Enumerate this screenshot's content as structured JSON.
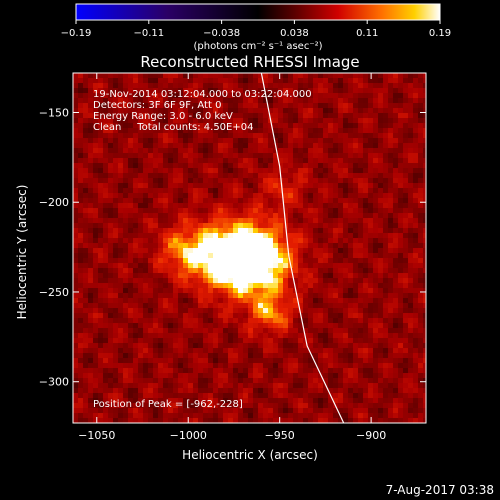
{
  "chart_data": {
    "type": "heatmap",
    "title": "Reconstructed RHESSI Image",
    "xlabel": "Heliocentric X (arcsec)",
    "ylabel": "Heliocentric Y (arcsec)",
    "xlim": [
      -1063,
      -870
    ],
    "ylim": [
      -323,
      -128
    ],
    "xticks": [
      -1050,
      -1000,
      -950,
      -900
    ],
    "xtick_labels": [
      "−1050",
      "−1000",
      "−950",
      "−900"
    ],
    "yticks": [
      -150,
      -200,
      -250,
      -300
    ],
    "ytick_labels": [
      "−150",
      "−200",
      "−250",
      "−300"
    ],
    "colorbar": {
      "min": -0.19,
      "max": 0.19,
      "tick_labels": [
        "−0.19",
        "−0.11",
        "−0.038",
        "0.038",
        "0.11",
        "0.19"
      ],
      "units": "(photons cm⁻² s⁻¹ asec⁻²)",
      "colormap": [
        "#0000ff",
        "#2a0066",
        "#000000",
        "#3a0000",
        "#c00000",
        "#ff6000",
        "#ffd000",
        "#ffffff"
      ]
    },
    "annotations": {
      "time_range": "19-Nov-2014 03:12:04.000 to 03:22:04.000",
      "detectors": "Detectors: 3F 6F 9F, Att 0",
      "energy": "Energy Range: 3.0 - 6.0 keV",
      "method": "Clean     Total counts: 4.50E+04",
      "peak": "Position of Peak = [-962,-228]"
    },
    "peak": [
      -962,
      -228
    ],
    "limb_curve": [
      [
        -960,
        -128
      ],
      [
        -950,
        -180
      ],
      [
        -945,
        -230
      ],
      [
        -935,
        -280
      ],
      [
        -915,
        -323
      ]
    ],
    "footer": "7-Aug-2017 03:38"
  }
}
